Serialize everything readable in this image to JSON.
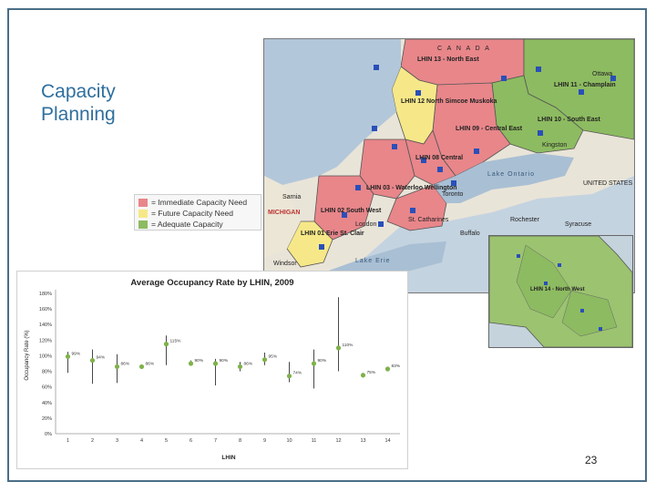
{
  "slide": {
    "title_lines": [
      "Capacity",
      "Planning"
    ],
    "page_number": "23"
  },
  "legend": {
    "items": [
      {
        "label": "= Immediate Capacity Need",
        "color": "#e8868a"
      },
      {
        "label": "= Future Capacity Need",
        "color": "#f6e888"
      },
      {
        "label": "= Adequate Capacity",
        "color": "#8dbb61"
      }
    ]
  },
  "map": {
    "labels": {
      "canada": "C A N A D A",
      "lhin13": "LHIN 13 - North East",
      "lhin14": "LHIN 14 - North West",
      "lhin11": "LHIN 11 - Champlain",
      "lhin10": "LHIN 10 - South East",
      "lhin12": "LHIN 12 North Simcoe Muskoka",
      "lhin9": "LHIN 09 - Central East",
      "lhin8": "LHIN 08 Central",
      "lhin3": "LHIN 03 - Waterloo Wellington",
      "lhin5": "LHIN 05",
      "lhin2": "LHIN 02 South West",
      "lhin1": "LHIN 01 Erie St. Clair",
      "lhin4": "St. Catharines",
      "toronto": "Toronto",
      "michigan": "MICHIGAN",
      "united_states": "UNITED STATES",
      "lake_ontario": "Lake Ontario",
      "lake_erie": "Lake Erie",
      "kingston": "Kingston",
      "ottawa": "Ottawa",
      "london": "London",
      "syracuse": "Syracuse",
      "rochester": "Rochester",
      "buffalo": "Buffalo",
      "sarnia": "Sarnia",
      "windsor": "Windsor"
    }
  },
  "chart_data": {
    "type": "scatter",
    "title": "Average Occupancy Rate by LHIN, 2009",
    "xlabel": "LHIN",
    "ylabel": "Occupancy Rate (%)",
    "ylim": [
      0,
      180
    ],
    "yticks": [
      "0%",
      "20%",
      "40%",
      "60%",
      "80%",
      "100%",
      "120%",
      "140%",
      "160%",
      "180%"
    ],
    "xticks": [
      "1",
      "2",
      "3",
      "4",
      "5",
      "6",
      "7",
      "8",
      "9",
      "10",
      "11",
      "12",
      "13",
      "14"
    ],
    "grid": false,
    "color": "#7fb24a",
    "points": [
      {
        "x": 1,
        "y": 99,
        "label": "99%",
        "low": 78,
        "high": 105
      },
      {
        "x": 2,
        "y": 94,
        "label": "94%",
        "low": 64,
        "high": 108
      },
      {
        "x": 3,
        "y": 86,
        "label": "86%",
        "low": 65,
        "high": 102
      },
      {
        "x": 4,
        "y": 86,
        "label": "86%",
        "low": 84,
        "high": 88
      },
      {
        "x": 5,
        "y": 115,
        "label": "115%",
        "low": 88,
        "high": 126
      },
      {
        "x": 6,
        "y": 90,
        "label": "90%",
        "low": 88,
        "high": 94
      },
      {
        "x": 7,
        "y": 90,
        "label": "90%",
        "low": 62,
        "high": 96
      },
      {
        "x": 8,
        "y": 86,
        "label": "86%",
        "low": 80,
        "high": 92
      },
      {
        "x": 9,
        "y": 95,
        "label": "95%",
        "low": 88,
        "high": 104
      },
      {
        "x": 10,
        "y": 74,
        "label": "74%",
        "low": 66,
        "high": 92
      },
      {
        "x": 11,
        "y": 90,
        "label": "90%",
        "low": 58,
        "high": 108
      },
      {
        "x": 12,
        "y": 110,
        "label": "110%",
        "low": 80,
        "high": 175
      },
      {
        "x": 13,
        "y": 75,
        "label": "75%",
        "low": 72,
        "high": 78
      },
      {
        "x": 14,
        "y": 83,
        "label": "83%",
        "low": 82,
        "high": 86
      }
    ]
  }
}
